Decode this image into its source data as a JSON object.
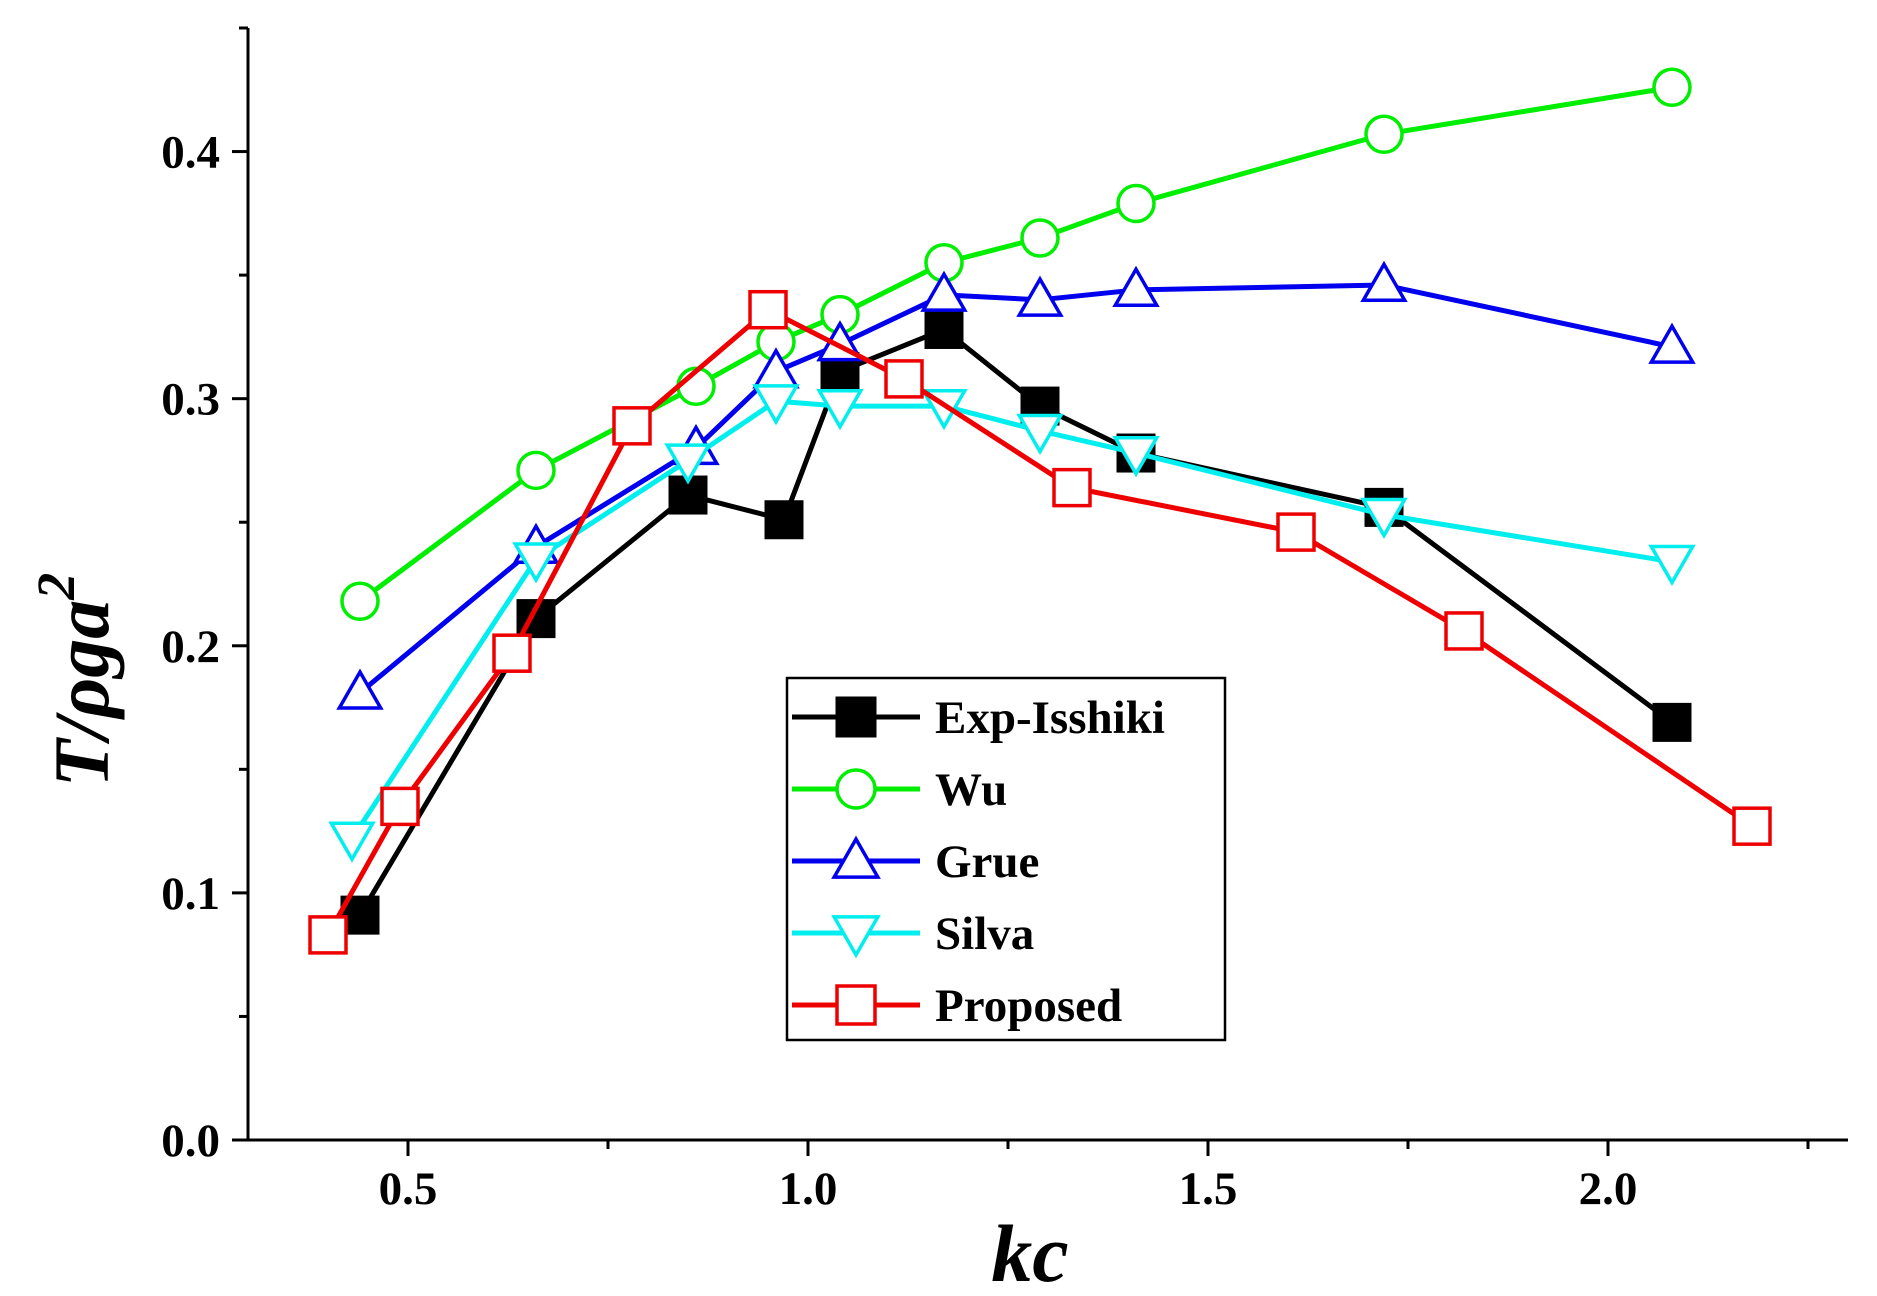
{
  "chart_data": {
    "type": "line",
    "title": "",
    "xlabel": "kc",
    "ylabel_main": "T/ρga",
    "ylabel_sup": "2",
    "xlim": [
      0.3,
      2.3
    ],
    "ylim": [
      0.0,
      0.45
    ],
    "xticks": [
      0.5,
      1.0,
      1.5,
      2.0
    ],
    "xtick_labels": [
      "0.5",
      "1.0",
      "1.5",
      "2.0"
    ],
    "yticks": [
      0.0,
      0.1,
      0.2,
      0.3,
      0.4
    ],
    "ytick_labels": [
      "0.0",
      "0.1",
      "0.2",
      "0.3",
      "0.4"
    ],
    "grid": false,
    "legend_position": "center",
    "series": [
      {
        "name": "Exp-Isshiki",
        "color": "#000000",
        "marker": "square-filled",
        "x": [
          0.44,
          0.66,
          0.85,
          0.97,
          1.04,
          1.17,
          1.29,
          1.41,
          1.72,
          2.08
        ],
        "y": [
          0.091,
          0.211,
          0.261,
          0.251,
          0.311,
          0.328,
          0.297,
          0.278,
          0.256,
          0.169
        ]
      },
      {
        "name": "Wu",
        "color": "#00ee00",
        "marker": "circle-open",
        "x": [
          0.44,
          0.66,
          0.86,
          0.96,
          1.04,
          1.17,
          1.29,
          1.41,
          1.72,
          2.08
        ],
        "y": [
          0.218,
          0.271,
          0.305,
          0.323,
          0.334,
          0.355,
          0.365,
          0.379,
          0.407,
          0.426
        ]
      },
      {
        "name": "Grue",
        "color": "#0000ee",
        "marker": "triangle-up-open",
        "x": [
          0.44,
          0.66,
          0.86,
          0.96,
          1.04,
          1.17,
          1.29,
          1.41,
          1.72,
          2.08
        ],
        "y": [
          0.181,
          0.24,
          0.28,
          0.311,
          0.322,
          0.342,
          0.34,
          0.344,
          0.346,
          0.321
        ]
      },
      {
        "name": "Silva",
        "color": "#00eeee",
        "marker": "triangle-down-open",
        "x": [
          0.43,
          0.66,
          0.85,
          0.96,
          1.04,
          1.17,
          1.29,
          1.41,
          1.72,
          2.08
        ],
        "y": [
          0.122,
          0.235,
          0.275,
          0.299,
          0.297,
          0.297,
          0.287,
          0.278,
          0.253,
          0.234
        ]
      },
      {
        "name": "Proposed",
        "color": "#ee0000",
        "marker": "square-open",
        "x": [
          0.4,
          0.49,
          0.63,
          0.78,
          0.95,
          1.12,
          1.33,
          1.61,
          1.82,
          2.18
        ],
        "y": [
          0.083,
          0.135,
          0.197,
          0.289,
          0.336,
          0.308,
          0.264,
          0.246,
          0.206,
          0.127
        ]
      }
    ]
  }
}
